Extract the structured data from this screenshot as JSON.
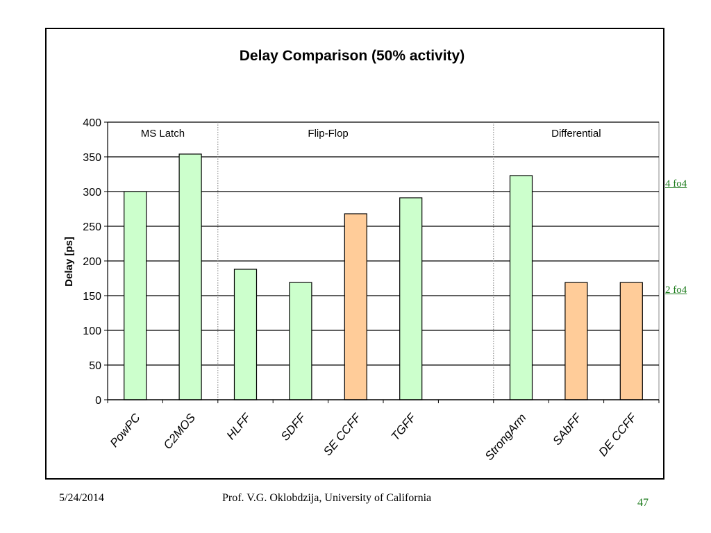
{
  "chart_data": {
    "type": "bar",
    "title": "Delay Comparison (50% activity)",
    "ylabel": "Delay [ps]",
    "xlabel": "",
    "ylim": [
      0,
      400
    ],
    "yticks": [
      "0",
      "50",
      "100",
      "150",
      "200",
      "250",
      "300",
      "350",
      "400"
    ],
    "grid": true,
    "groups": [
      {
        "label": "MS Latch",
        "range": [
          0,
          1
        ]
      },
      {
        "label": "Flip-Flop",
        "range": [
          2,
          5
        ]
      },
      {
        "label": "Differential",
        "range": [
          7,
          9
        ]
      }
    ],
    "categories": [
      "PowPC",
      "C2MOS",
      "HLFF",
      "SDFF",
      "SE CCFF",
      "TGFF",
      "",
      "StrongArm",
      "SAbFF",
      "DE CCFF"
    ],
    "values": [
      300,
      354,
      188,
      169,
      268,
      291,
      null,
      323,
      169,
      169
    ],
    "bar_colors": [
      "#ccffcc",
      "#ccffcc",
      "#ccffcc",
      "#ccffcc",
      "#ffcc99",
      "#ccffcc",
      null,
      "#ccffcc",
      "#ffcc99",
      "#ffcc99"
    ]
  },
  "annotations": {
    "upper": "4 fo4",
    "lower": "2 fo4"
  },
  "footer": {
    "date": "5/24/2014",
    "credit": "Prof. V.G. Oklobdzija, University of California",
    "page": "47"
  }
}
